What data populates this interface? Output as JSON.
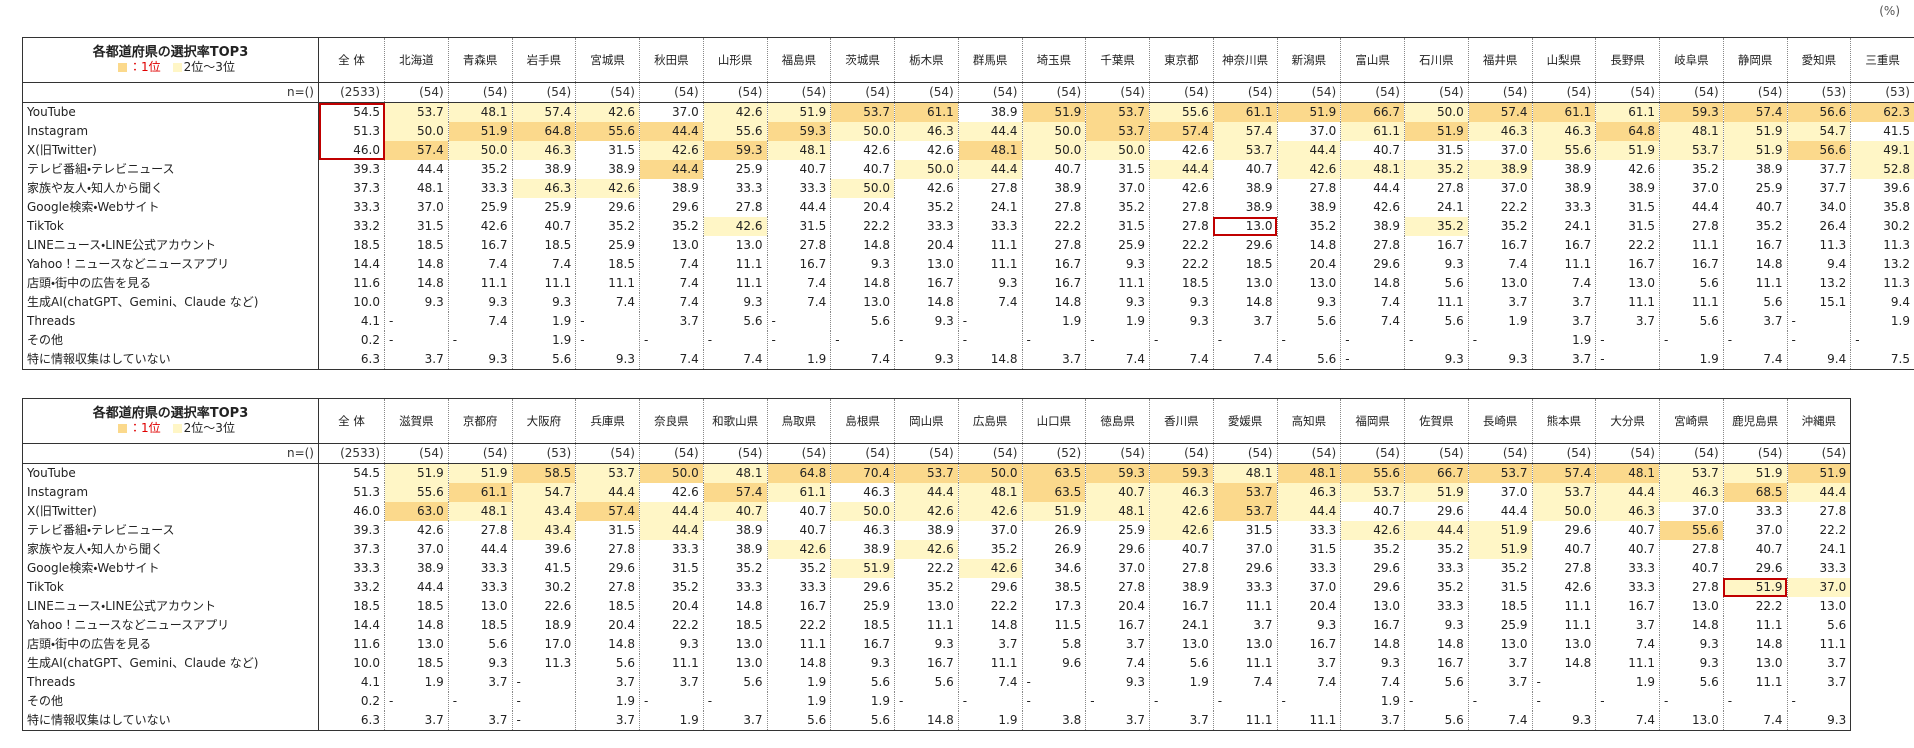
{
  "unit_note": "(%)",
  "legend": {
    "first": "：1位",
    "second": "2位～3位"
  },
  "colors": {
    "first": "#fbd98c",
    "second": "#fff6c6",
    "outline": "#c00000",
    "first_text": "#e00000"
  },
  "tables": [
    {
      "title": "各都道府県の選択率TOP3",
      "n_label": "n=()",
      "columns": [
        "全 体",
        "北海道",
        "青森県",
        "岩手県",
        "宮城県",
        "秋田県",
        "山形県",
        "福島県",
        "茨城県",
        "栃木県",
        "群馬県",
        "埼玉県",
        "千葉県",
        "東京都",
        "神奈川県",
        "新潟県",
        "富山県",
        "石川県",
        "福井県",
        "山梨県",
        "長野県",
        "岐阜県",
        "静岡県",
        "愛知県",
        "三重県"
      ],
      "n": [
        "(2533)",
        "(54)",
        "(54)",
        "(54)",
        "(54)",
        "(54)",
        "(54)",
        "(54)",
        "(54)",
        "(54)",
        "(54)",
        "(54)",
        "(54)",
        "(54)",
        "(54)",
        "(54)",
        "(54)",
        "(54)",
        "(54)",
        "(54)",
        "(54)",
        "(54)",
        "(54)",
        "(53)",
        "(53)"
      ],
      "rows": [
        {
          "label": "YouTube",
          "cells": [
            "54.5",
            "53.7",
            "48.1",
            "57.4",
            "42.6",
            "37.0",
            "42.6",
            "51.9",
            "53.7",
            "61.1",
            "38.9",
            "51.9",
            "53.7",
            "55.6",
            "61.1",
            "51.9",
            "66.7",
            "50.0",
            "57.4",
            "61.1",
            "61.1",
            "59.3",
            "57.4",
            "56.6",
            "62.3"
          ]
        },
        {
          "label": "Instagram",
          "cells": [
            "51.3",
            "50.0",
            "51.9",
            "64.8",
            "55.6",
            "44.4",
            "55.6",
            "59.3",
            "50.0",
            "46.3",
            "44.4",
            "50.0",
            "53.7",
            "57.4",
            "57.4",
            "37.0",
            "61.1",
            "51.9",
            "46.3",
            "46.3",
            "64.8",
            "48.1",
            "51.9",
            "54.7",
            "41.5"
          ]
        },
        {
          "label": "X(旧Twitter)",
          "cells": [
            "46.0",
            "57.4",
            "50.0",
            "46.3",
            "31.5",
            "42.6",
            "59.3",
            "48.1",
            "42.6",
            "42.6",
            "48.1",
            "50.0",
            "50.0",
            "42.6",
            "53.7",
            "44.4",
            "40.7",
            "31.5",
            "37.0",
            "55.6",
            "51.9",
            "53.7",
            "51.9",
            "56.6",
            "49.1"
          ]
        },
        {
          "label": "テレビ番組・テレビニュース",
          "cells": [
            "39.3",
            "44.4",
            "35.2",
            "38.9",
            "38.9",
            "44.4",
            "25.9",
            "40.7",
            "40.7",
            "50.0",
            "44.4",
            "40.7",
            "31.5",
            "44.4",
            "40.7",
            "42.6",
            "48.1",
            "35.2",
            "38.9",
            "38.9",
            "42.6",
            "35.2",
            "38.9",
            "37.7",
            "52.8"
          ]
        },
        {
          "label": "家族や友人・知人から聞く",
          "cells": [
            "37.3",
            "48.1",
            "33.3",
            "46.3",
            "42.6",
            "38.9",
            "33.3",
            "33.3",
            "50.0",
            "42.6",
            "27.8",
            "38.9",
            "37.0",
            "42.6",
            "38.9",
            "27.8",
            "44.4",
            "27.8",
            "37.0",
            "38.9",
            "38.9",
            "37.0",
            "25.9",
            "37.7",
            "39.6"
          ]
        },
        {
          "label": "Google検索・Webサイト",
          "cells": [
            "33.3",
            "37.0",
            "25.9",
            "25.9",
            "29.6",
            "29.6",
            "27.8",
            "44.4",
            "20.4",
            "35.2",
            "24.1",
            "27.8",
            "35.2",
            "27.8",
            "38.9",
            "38.9",
            "42.6",
            "24.1",
            "22.2",
            "33.3",
            "31.5",
            "44.4",
            "40.7",
            "34.0",
            "35.8"
          ]
        },
        {
          "label": "TikTok",
          "cells": [
            "33.2",
            "31.5",
            "42.6",
            "40.7",
            "35.2",
            "35.2",
            "42.6",
            "31.5",
            "22.2",
            "33.3",
            "33.3",
            "22.2",
            "31.5",
            "27.8",
            "13.0",
            "35.2",
            "38.9",
            "35.2",
            "35.2",
            "24.1",
            "31.5",
            "27.8",
            "35.2",
            "26.4",
            "30.2"
          ]
        },
        {
          "label": "LINEニュース・LINE公式アカウント",
          "cells": [
            "18.5",
            "18.5",
            "16.7",
            "18.5",
            "25.9",
            "13.0",
            "13.0",
            "27.8",
            "14.8",
            "20.4",
            "11.1",
            "27.8",
            "25.9",
            "22.2",
            "29.6",
            "14.8",
            "27.8",
            "16.7",
            "16.7",
            "16.7",
            "22.2",
            "11.1",
            "16.7",
            "11.3",
            "11.3"
          ]
        },
        {
          "label": "Yahoo！ニュースなどニュースアプリ",
          "cells": [
            "14.4",
            "14.8",
            "7.4",
            "7.4",
            "18.5",
            "7.4",
            "11.1",
            "16.7",
            "9.3",
            "13.0",
            "11.1",
            "16.7",
            "9.3",
            "22.2",
            "18.5",
            "20.4",
            "29.6",
            "9.3",
            "7.4",
            "11.1",
            "16.7",
            "16.7",
            "14.8",
            "9.4",
            "13.2"
          ]
        },
        {
          "label": "店頭・街中の広告を見る",
          "cells": [
            "11.6",
            "14.8",
            "11.1",
            "11.1",
            "11.1",
            "7.4",
            "11.1",
            "7.4",
            "14.8",
            "16.7",
            "9.3",
            "16.7",
            "11.1",
            "18.5",
            "13.0",
            "13.0",
            "14.8",
            "5.6",
            "13.0",
            "7.4",
            "13.0",
            "5.6",
            "11.1",
            "13.2",
            "11.3"
          ]
        },
        {
          "label": "生成AI(chatGPT、Gemini、Claude など)",
          "cells": [
            "10.0",
            "9.3",
            "9.3",
            "9.3",
            "7.4",
            "7.4",
            "9.3",
            "7.4",
            "13.0",
            "14.8",
            "7.4",
            "14.8",
            "9.3",
            "9.3",
            "14.8",
            "9.3",
            "7.4",
            "11.1",
            "3.7",
            "3.7",
            "11.1",
            "11.1",
            "5.6",
            "15.1",
            "9.4"
          ]
        },
        {
          "label": "Threads",
          "cells": [
            "4.1",
            "-",
            "7.4",
            "1.9",
            "-",
            "3.7",
            "5.6",
            "-",
            "5.6",
            "9.3",
            "-",
            "1.9",
            "1.9",
            "9.3",
            "3.7",
            "5.6",
            "7.4",
            "5.6",
            "1.9",
            "3.7",
            "3.7",
            "5.6",
            "3.7",
            "-",
            "1.9"
          ]
        },
        {
          "label": "その他",
          "cells": [
            "0.2",
            "-",
            "-",
            "1.9",
            "-",
            "-",
            "-",
            "-",
            "-",
            "-",
            "-",
            "-",
            "-",
            "-",
            "-",
            "-",
            "-",
            "-",
            "-",
            "1.9",
            "-",
            "-",
            "-",
            "-",
            "-"
          ]
        },
        {
          "label": "特に情報収集はしていない",
          "cells": [
            "6.3",
            "3.7",
            "9.3",
            "5.6",
            "9.3",
            "7.4",
            "7.4",
            "1.9",
            "7.4",
            "9.3",
            "14.8",
            "3.7",
            "7.4",
            "7.4",
            "7.4",
            "5.6",
            "-",
            "9.3",
            "9.3",
            "3.7",
            "-",
            "1.9",
            "7.4",
            "9.4",
            "7.5"
          ]
        }
      ],
      "outlined": [
        {
          "col": 0,
          "rows": [
            0,
            2
          ]
        },
        {
          "col": 14,
          "rows": [
            6,
            6
          ]
        }
      ]
    },
    {
      "title": "各都道府県の選択率TOP3",
      "n_label": "n=()",
      "columns": [
        "全 体",
        "滋賀県",
        "京都府",
        "大阪府",
        "兵庫県",
        "奈良県",
        "和歌山県",
        "鳥取県",
        "島根県",
        "岡山県",
        "広島県",
        "山口県",
        "徳島県",
        "香川県",
        "愛媛県",
        "高知県",
        "福岡県",
        "佐賀県",
        "長崎県",
        "熊本県",
        "大分県",
        "宮崎県",
        "鹿児島県",
        "沖縄県"
      ],
      "n": [
        "(2533)",
        "(54)",
        "(54)",
        "(53)",
        "(54)",
        "(54)",
        "(54)",
        "(54)",
        "(54)",
        "(54)",
        "(54)",
        "(52)",
        "(54)",
        "(54)",
        "(54)",
        "(54)",
        "(54)",
        "(54)",
        "(54)",
        "(54)",
        "(54)",
        "(54)",
        "(54)",
        "(54)"
      ],
      "rows": [
        {
          "label": "YouTube",
          "cells": [
            "54.5",
            "51.9",
            "51.9",
            "58.5",
            "53.7",
            "50.0",
            "48.1",
            "64.8",
            "70.4",
            "53.7",
            "50.0",
            "63.5",
            "59.3",
            "59.3",
            "48.1",
            "48.1",
            "55.6",
            "66.7",
            "53.7",
            "57.4",
            "48.1",
            "53.7",
            "51.9",
            "51.9"
          ]
        },
        {
          "label": "Instagram",
          "cells": [
            "51.3",
            "55.6",
            "61.1",
            "54.7",
            "44.4",
            "42.6",
            "57.4",
            "61.1",
            "46.3",
            "44.4",
            "48.1",
            "63.5",
            "40.7",
            "46.3",
            "53.7",
            "46.3",
            "53.7",
            "51.9",
            "37.0",
            "53.7",
            "44.4",
            "46.3",
            "68.5",
            "44.4"
          ]
        },
        {
          "label": "X(旧Twitter)",
          "cells": [
            "46.0",
            "63.0",
            "48.1",
            "43.4",
            "57.4",
            "44.4",
            "40.7",
            "40.7",
            "50.0",
            "42.6",
            "42.6",
            "51.9",
            "48.1",
            "42.6",
            "53.7",
            "44.4",
            "40.7",
            "29.6",
            "44.4",
            "50.0",
            "46.3",
            "37.0",
            "33.3",
            "27.8"
          ]
        },
        {
          "label": "テレビ番組・テレビニュース",
          "cells": [
            "39.3",
            "42.6",
            "27.8",
            "43.4",
            "31.5",
            "44.4",
            "38.9",
            "40.7",
            "46.3",
            "38.9",
            "37.0",
            "26.9",
            "25.9",
            "42.6",
            "31.5",
            "33.3",
            "42.6",
            "44.4",
            "51.9",
            "29.6",
            "40.7",
            "55.6",
            "37.0",
            "22.2"
          ]
        },
        {
          "label": "家族や友人・知人から聞く",
          "cells": [
            "37.3",
            "37.0",
            "44.4",
            "39.6",
            "27.8",
            "33.3",
            "38.9",
            "42.6",
            "38.9",
            "42.6",
            "35.2",
            "26.9",
            "29.6",
            "40.7",
            "37.0",
            "31.5",
            "35.2",
            "35.2",
            "51.9",
            "40.7",
            "40.7",
            "27.8",
            "40.7",
            "24.1"
          ]
        },
        {
          "label": "Google検索・Webサイト",
          "cells": [
            "33.3",
            "38.9",
            "33.3",
            "41.5",
            "29.6",
            "31.5",
            "35.2",
            "35.2",
            "51.9",
            "22.2",
            "42.6",
            "34.6",
            "37.0",
            "27.8",
            "29.6",
            "33.3",
            "29.6",
            "33.3",
            "35.2",
            "27.8",
            "33.3",
            "40.7",
            "29.6",
            "33.3"
          ]
        },
        {
          "label": "TikTok",
          "cells": [
            "33.2",
            "44.4",
            "33.3",
            "30.2",
            "27.8",
            "35.2",
            "33.3",
            "33.3",
            "29.6",
            "35.2",
            "29.6",
            "38.5",
            "27.8",
            "38.9",
            "33.3",
            "37.0",
            "29.6",
            "35.2",
            "31.5",
            "42.6",
            "33.3",
            "27.8",
            "51.9",
            "37.0"
          ]
        },
        {
          "label": "LINEニュース・LINE公式アカウント",
          "cells": [
            "18.5",
            "18.5",
            "13.0",
            "22.6",
            "18.5",
            "20.4",
            "14.8",
            "16.7",
            "25.9",
            "13.0",
            "22.2",
            "17.3",
            "20.4",
            "16.7",
            "11.1",
            "20.4",
            "13.0",
            "33.3",
            "18.5",
            "11.1",
            "16.7",
            "13.0",
            "22.2",
            "13.0"
          ]
        },
        {
          "label": "Yahoo！ニュースなどニュースアプリ",
          "cells": [
            "14.4",
            "14.8",
            "18.5",
            "18.9",
            "20.4",
            "22.2",
            "18.5",
            "22.2",
            "18.5",
            "11.1",
            "14.8",
            "11.5",
            "16.7",
            "24.1",
            "3.7",
            "9.3",
            "16.7",
            "9.3",
            "25.9",
            "11.1",
            "3.7",
            "14.8",
            "11.1",
            "5.6"
          ]
        },
        {
          "label": "店頭・街中の広告を見る",
          "cells": [
            "11.6",
            "13.0",
            "5.6",
            "17.0",
            "14.8",
            "9.3",
            "13.0",
            "11.1",
            "16.7",
            "9.3",
            "3.7",
            "5.8",
            "3.7",
            "13.0",
            "13.0",
            "16.7",
            "14.8",
            "14.8",
            "13.0",
            "13.0",
            "7.4",
            "9.3",
            "14.8",
            "11.1"
          ]
        },
        {
          "label": "生成AI(chatGPT、Gemini、Claude など)",
          "cells": [
            "10.0",
            "18.5",
            "9.3",
            "11.3",
            "5.6",
            "11.1",
            "13.0",
            "14.8",
            "9.3",
            "16.7",
            "11.1",
            "9.6",
            "7.4",
            "5.6",
            "11.1",
            "3.7",
            "9.3",
            "16.7",
            "3.7",
            "14.8",
            "11.1",
            "9.3",
            "13.0",
            "3.7"
          ]
        },
        {
          "label": "Threads",
          "cells": [
            "4.1",
            "1.9",
            "3.7",
            "-",
            "3.7",
            "3.7",
            "5.6",
            "1.9",
            "5.6",
            "5.6",
            "7.4",
            "-",
            "9.3",
            "1.9",
            "7.4",
            "7.4",
            "7.4",
            "5.6",
            "3.7",
            "-",
            "1.9",
            "5.6",
            "11.1",
            "3.7"
          ]
        },
        {
          "label": "その他",
          "cells": [
            "0.2",
            "-",
            "-",
            "-",
            "1.9",
            "-",
            "-",
            "1.9",
            "1.9",
            "-",
            "-",
            "-",
            "-",
            "-",
            "-",
            "-",
            "1.9",
            "-",
            "-",
            "-",
            "-",
            "-",
            "-",
            "-"
          ]
        },
        {
          "label": "特に情報収集はしていない",
          "cells": [
            "6.3",
            "3.7",
            "3.7",
            "-",
            "3.7",
            "1.9",
            "3.7",
            "5.6",
            "5.6",
            "14.8",
            "1.9",
            "3.8",
            "3.7",
            "3.7",
            "11.1",
            "11.1",
            "3.7",
            "5.6",
            "7.4",
            "9.3",
            "7.4",
            "13.0",
            "7.4",
            "9.3"
          ]
        }
      ],
      "outlined": [
        {
          "col": 22,
          "rows": [
            6,
            6
          ]
        }
      ]
    }
  ]
}
